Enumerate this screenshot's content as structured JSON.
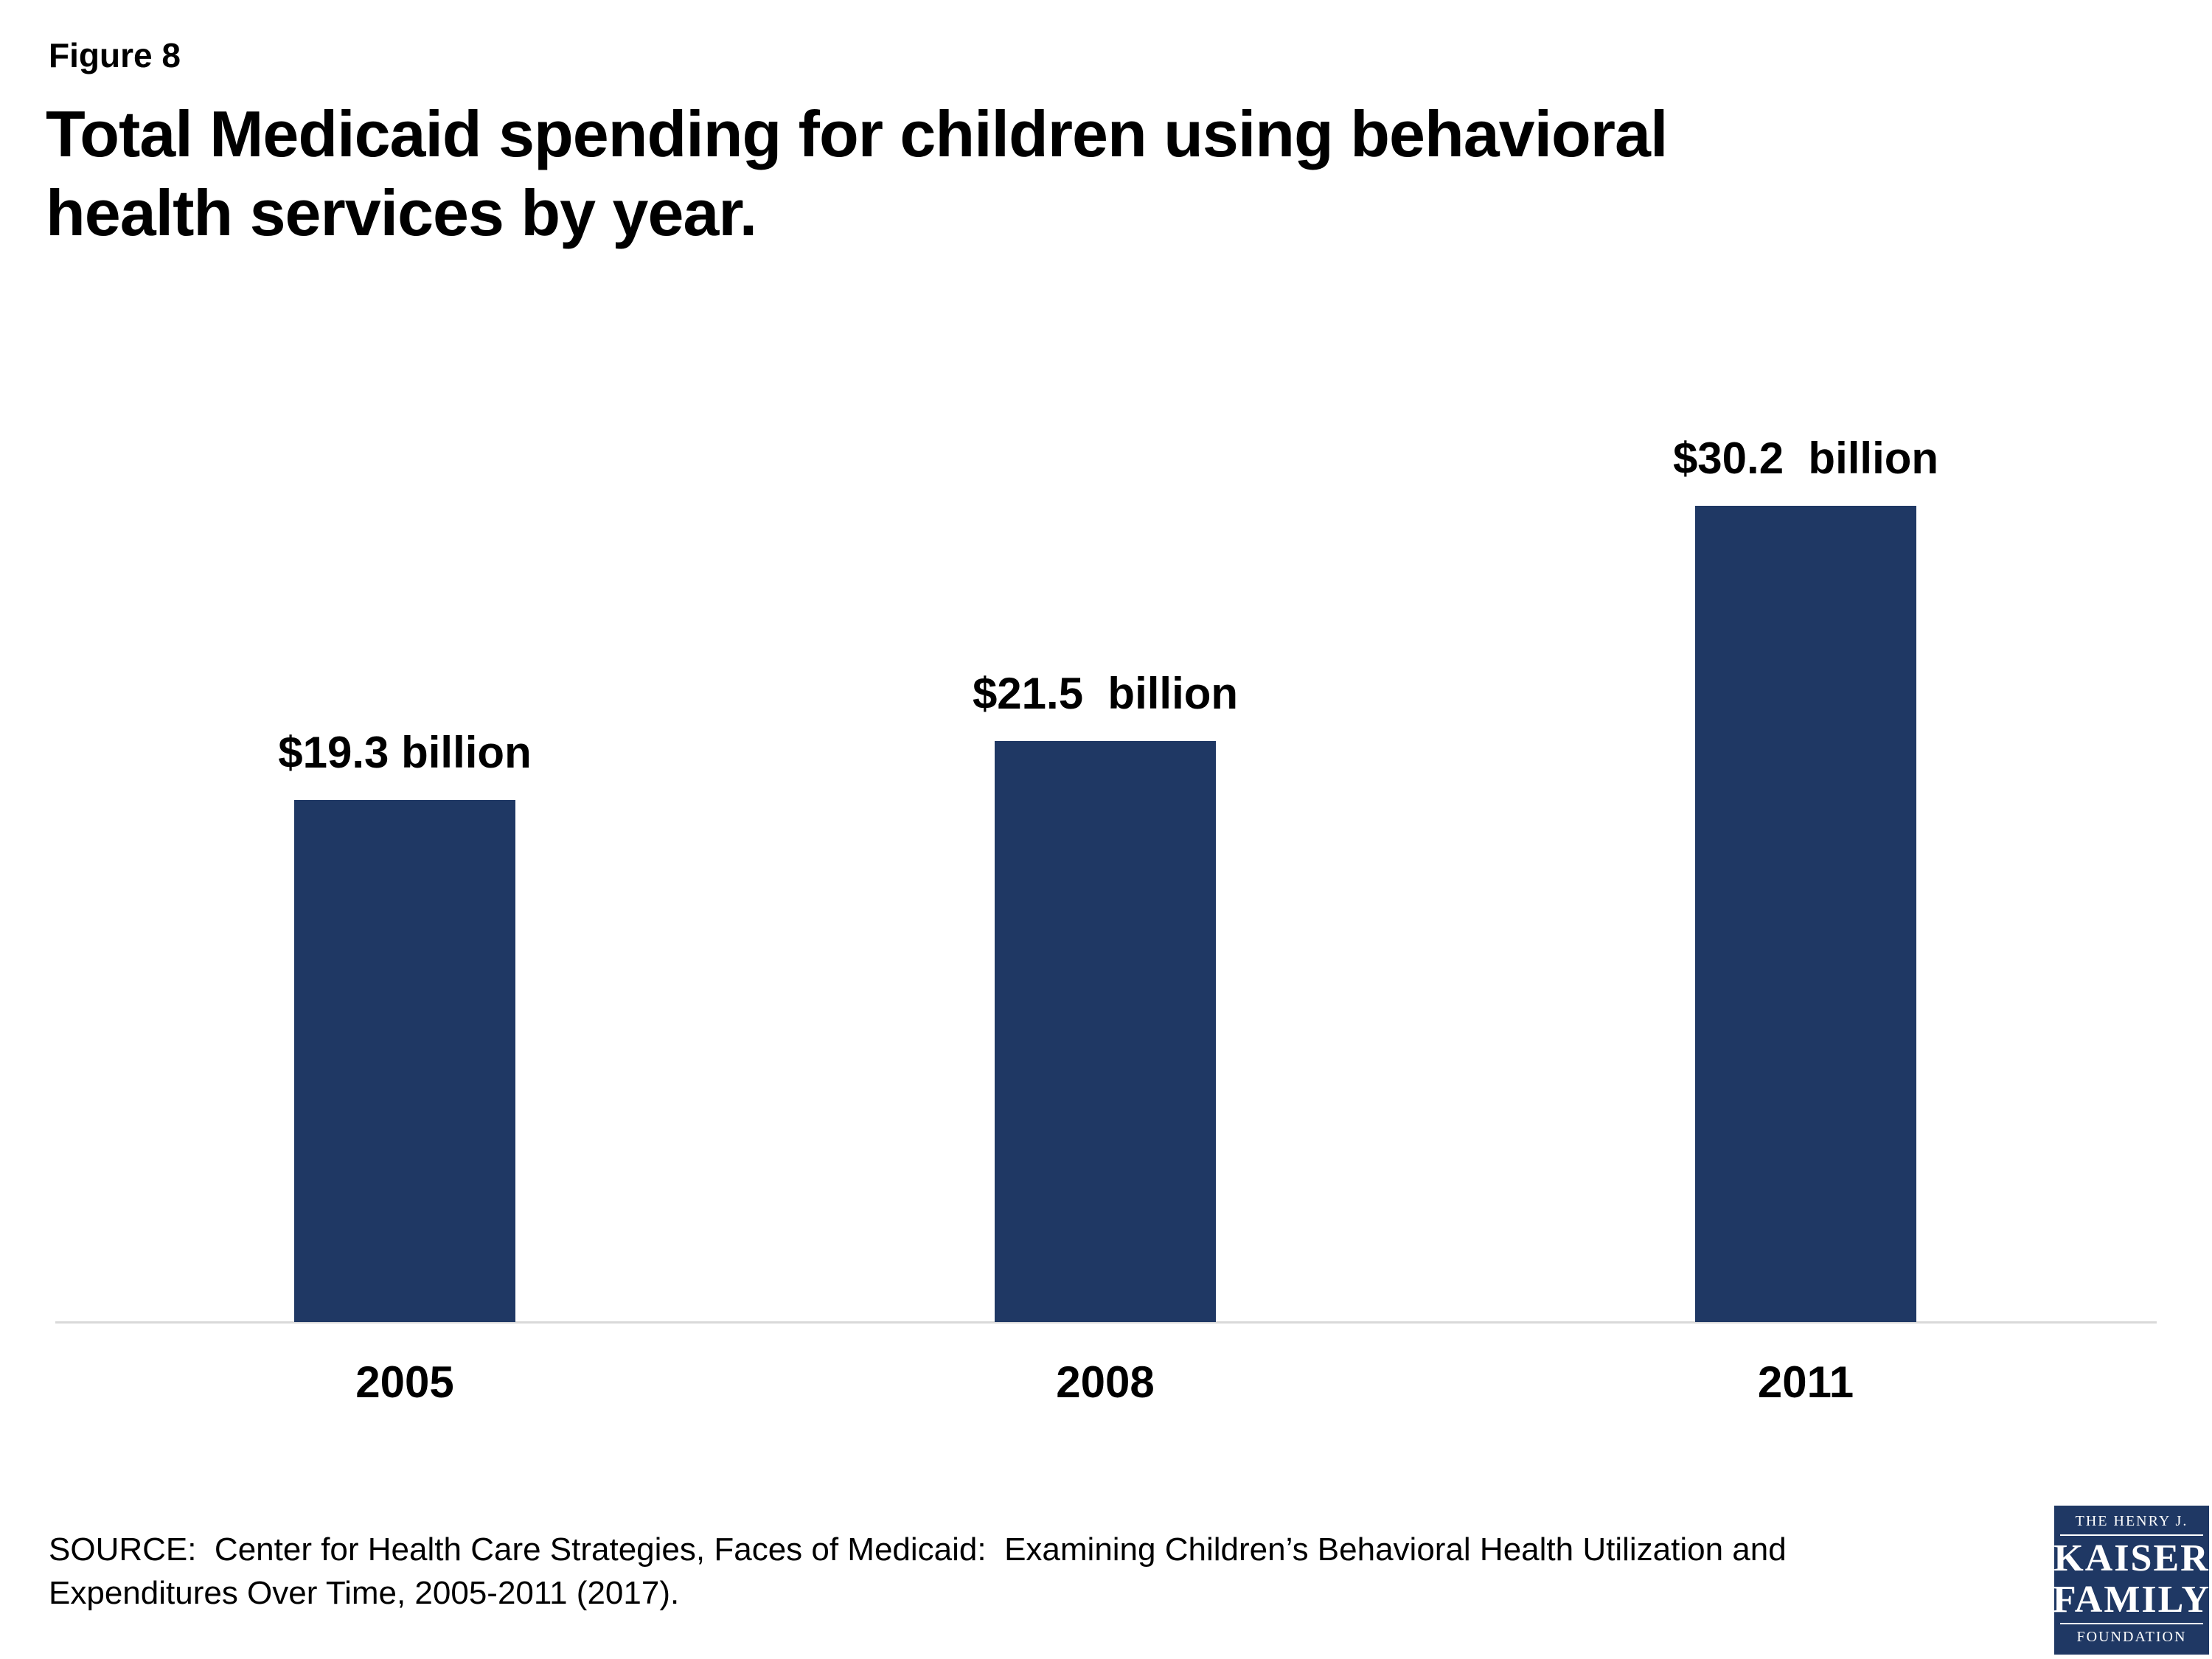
{
  "figure_label": "Figure 8",
  "title": {
    "line1": "Total Medicaid spending for children using behavioral",
    "line2": "health services by year."
  },
  "chart_data": {
    "type": "bar",
    "title": "Total Medicaid spending for children using behavioral health services by year.",
    "categories": [
      "2005",
      "2008",
      "2011"
    ],
    "values": [
      19.3,
      21.5,
      30.2
    ],
    "bar_labels": [
      "$19.3 billion",
      "$21.5  billion",
      "$30.2  billion"
    ],
    "unit": "billions USD",
    "xlabel": "",
    "ylabel": "",
    "ylim": [
      0,
      33
    ],
    "grid": false,
    "legend": false
  },
  "source": {
    "line1": "SOURCE:  Center for Health Care Strategies, Faces of Medicaid:  Examining Children’s Behavioral Health Utilization and",
    "line2": "Expenditures Over Time, 2005-2011 (2017)."
  },
  "logo": {
    "line1": "THE HENRY J.",
    "line2": "KAISER",
    "line3": "FAMILY",
    "line4": "FOUNDATION"
  },
  "colors": {
    "bar": "#1f3864",
    "logo_bg": "#1f3864",
    "axis": "#d9d9d9",
    "text": "#000000"
  }
}
